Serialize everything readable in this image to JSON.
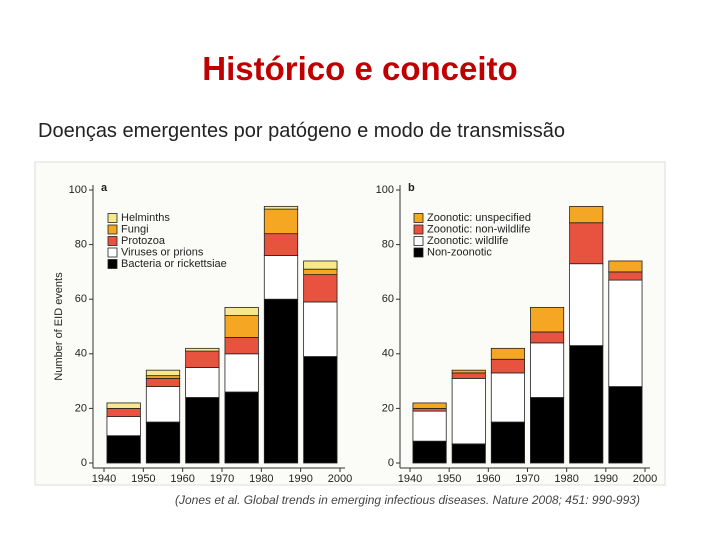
{
  "title": "Histórico e conceito",
  "subtitle": "Doenças emergentes por patógeno e modo de transmissão",
  "caption": "(Jones et al. Global trends in emerging infectious diseases. Nature 2008; 451: 990-993)",
  "chart_data": [
    {
      "type": "bar",
      "stacked": true,
      "panel_label": "a",
      "y_label": "Number of EID events",
      "legend": "upper left",
      "x": [
        1945,
        1955,
        1965,
        1975,
        1985,
        1995
      ],
      "xlim": [
        1940,
        2000
      ],
      "xticks": [
        1940,
        1950,
        1960,
        1970,
        1980,
        1990,
        2000
      ],
      "ylim": [
        0,
        100
      ],
      "yticks": [
        0,
        20,
        40,
        60,
        80,
        100
      ],
      "series": [
        {
          "name": "Bacteria or rickettsiae",
          "color": "#000000",
          "values": [
            10,
            15,
            24,
            26,
            60,
            39
          ]
        },
        {
          "name": "Viruses or prions",
          "color": "#ffffff",
          "values": [
            7,
            13,
            11,
            14,
            16,
            20
          ]
        },
        {
          "name": "Protozoa",
          "color": "#e8533f",
          "values": [
            3,
            3,
            6,
            6,
            8,
            10
          ]
        },
        {
          "name": "Fungi",
          "color": "#f5a623",
          "values": [
            0,
            1,
            0,
            8,
            9,
            2
          ]
        },
        {
          "name": "Helminths",
          "color": "#f7e88f",
          "values": [
            2,
            2,
            1,
            3,
            1,
            3
          ]
        }
      ]
    },
    {
      "type": "bar",
      "stacked": true,
      "panel_label": "b",
      "legend": "upper left",
      "x": [
        1945,
        1955,
        1965,
        1975,
        1985,
        1995
      ],
      "xlim": [
        1940,
        2000
      ],
      "xticks": [
        1940,
        1950,
        1960,
        1970,
        1980,
        1990,
        2000
      ],
      "ylim": [
        0,
        100
      ],
      "yticks": [
        0,
        20,
        40,
        60,
        80,
        100
      ],
      "series": [
        {
          "name": "Non-zoonotic",
          "color": "#000000",
          "values": [
            8,
            7,
            15,
            24,
            43,
            28
          ]
        },
        {
          "name": "Zoonotic: wildlife",
          "color": "#ffffff",
          "values": [
            11,
            24,
            18,
            20,
            30,
            39
          ]
        },
        {
          "name": "Zoonotic: non-wildlife",
          "color": "#e8533f",
          "values": [
            1,
            2,
            5,
            4,
            15,
            3
          ]
        },
        {
          "name": "Zoonotic: unspecified",
          "color": "#f5a623",
          "values": [
            2,
            1,
            4,
            9,
            6,
            4
          ]
        }
      ]
    }
  ]
}
